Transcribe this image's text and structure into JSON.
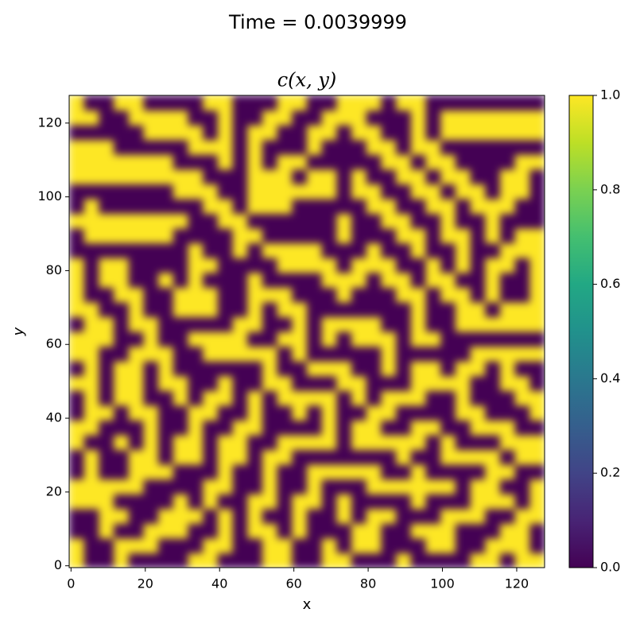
{
  "chart_data": {
    "type": "heatmap",
    "suptitle": "Time = 0.0039999",
    "title": "c(x, y)",
    "xlabel": "x",
    "ylabel": "y",
    "colormap": "viridis",
    "xlim": [
      -0.5,
      127.5
    ],
    "ylim": [
      -0.5,
      127.5
    ],
    "xticks": [
      0,
      20,
      40,
      60,
      80,
      100,
      120
    ],
    "yticks": [
      0,
      20,
      40,
      60,
      80,
      100,
      120
    ],
    "clim": [
      0,
      1
    ],
    "cticks": [
      {
        "value": 0,
        "label": "0.0"
      },
      0.2,
      0.4,
      0.6,
      0.8,
      {
        "value": 1,
        "label": "1.0"
      }
    ],
    "z": [
      [
        1,
        0,
        0,
        1,
        0,
        0,
        0,
        0,
        1,
        1,
        0,
        0,
        0,
        1,
        1,
        0,
        0,
        1,
        1,
        0,
        0,
        0,
        1,
        0,
        0,
        0,
        0,
        1,
        1,
        0,
        1,
        1
      ],
      [
        1,
        0,
        0,
        1,
        1,
        1,
        0,
        0,
        0,
        1,
        1,
        0,
        0,
        1,
        1,
        0,
        0,
        1,
        0,
        1,
        1,
        0,
        0,
        0,
        1,
        1,
        0,
        0,
        1,
        1,
        1,
        0
      ],
      [
        0,
        0,
        1,
        0,
        0,
        1,
        1,
        1,
        0,
        0,
        1,
        0,
        1,
        1,
        0,
        1,
        0,
        0,
        0,
        1,
        1,
        0,
        0,
        1,
        1,
        1,
        0,
        0,
        0,
        1,
        1,
        0
      ],
      [
        0,
        0,
        1,
        1,
        0,
        0,
        1,
        1,
        1,
        0,
        1,
        0,
        1,
        0,
        0,
        1,
        0,
        0,
        1,
        0,
        1,
        1,
        0,
        0,
        0,
        1,
        1,
        1,
        0,
        0,
        1,
        1
      ],
      [
        1,
        1,
        1,
        0,
        0,
        0,
        0,
        1,
        0,
        1,
        0,
        0,
        1,
        1,
        0,
        1,
        1,
        0,
        1,
        0,
        0,
        0,
        0,
        1,
        0,
        0,
        0,
        1,
        1,
        1,
        0,
        1
      ],
      [
        1,
        1,
        1,
        1,
        1,
        0,
        0,
        0,
        0,
        1,
        1,
        0,
        0,
        1,
        0,
        0,
        1,
        0,
        0,
        0,
        1,
        1,
        1,
        1,
        1,
        1,
        0,
        1,
        1,
        0,
        0,
        1
      ],
      [
        0,
        1,
        0,
        0,
        1,
        1,
        1,
        0,
        0,
        0,
        1,
        0,
        0,
        1,
        0,
        0,
        1,
        1,
        1,
        1,
        1,
        0,
        0,
        1,
        0,
        0,
        0,
        0,
        1,
        1,
        0,
        0
      ],
      [
        0,
        1,
        0,
        0,
        1,
        1,
        0,
        1,
        1,
        0,
        1,
        1,
        0,
        1,
        1,
        0,
        0,
        0,
        0,
        0,
        0,
        0,
        1,
        0,
        0,
        1,
        1,
        1,
        1,
        0,
        1,
        1
      ],
      [
        1,
        0,
        0,
        1,
        0,
        1,
        0,
        1,
        1,
        0,
        1,
        1,
        0,
        0,
        1,
        1,
        1,
        1,
        0,
        1,
        1,
        1,
        1,
        1,
        0,
        1,
        0,
        0,
        0,
        1,
        1,
        1
      ],
      [
        1,
        1,
        0,
        0,
        0,
        1,
        0,
        0,
        1,
        0,
        0,
        1,
        1,
        0,
        0,
        0,
        0,
        1,
        0,
        1,
        1,
        0,
        0,
        1,
        1,
        0,
        0,
        1,
        1,
        1,
        0,
        0
      ],
      [
        0,
        1,
        1,
        0,
        1,
        1,
        0,
        0,
        1,
        1,
        0,
        0,
        1,
        0,
        0,
        1,
        0,
        1,
        0,
        0,
        1,
        1,
        0,
        0,
        0,
        0,
        1,
        1,
        0,
        0,
        0,
        1
      ],
      [
        0,
        1,
        0,
        1,
        1,
        0,
        0,
        1,
        0,
        1,
        1,
        0,
        1,
        0,
        1,
        1,
        1,
        1,
        0,
        1,
        0,
        1,
        1,
        1,
        0,
        0,
        1,
        0,
        0,
        0,
        1,
        1
      ],
      [
        1,
        1,
        0,
        1,
        1,
        0,
        1,
        1,
        0,
        0,
        1,
        0,
        0,
        1,
        1,
        0,
        0,
        0,
        1,
        1,
        0,
        0,
        0,
        1,
        1,
        1,
        1,
        0,
        0,
        1,
        1,
        0
      ],
      [
        0,
        1,
        0,
        1,
        1,
        0,
        1,
        0,
        0,
        0,
        0,
        0,
        0,
        1,
        0,
        0,
        1,
        1,
        1,
        0,
        0,
        1,
        0,
        1,
        1,
        0,
        1,
        1,
        0,
        1,
        0,
        0
      ],
      [
        1,
        1,
        0,
        0,
        1,
        1,
        1,
        0,
        0,
        1,
        1,
        1,
        1,
        1,
        0,
        1,
        0,
        0,
        0,
        0,
        0,
        1,
        0,
        0,
        0,
        0,
        0,
        1,
        1,
        1,
        1,
        1
      ],
      [
        1,
        1,
        1,
        0,
        0,
        1,
        0,
        0,
        1,
        1,
        1,
        1,
        0,
        0,
        1,
        1,
        0,
        1,
        0,
        1,
        1,
        1,
        0,
        1,
        1,
        0,
        0,
        0,
        0,
        0,
        0,
        0
      ],
      [
        0,
        1,
        1,
        0,
        1,
        1,
        0,
        0,
        0,
        0,
        0,
        1,
        1,
        0,
        0,
        1,
        0,
        1,
        1,
        1,
        1,
        0,
        0,
        1,
        0,
        0,
        1,
        1,
        1,
        1,
        1,
        1
      ],
      [
        1,
        1,
        0,
        0,
        1,
        0,
        0,
        1,
        1,
        1,
        0,
        0,
        1,
        0,
        1,
        1,
        0,
        0,
        0,
        0,
        0,
        0,
        0,
        1,
        0,
        0,
        1,
        1,
        0,
        1,
        1,
        1
      ],
      [
        1,
        0,
        0,
        1,
        1,
        0,
        0,
        1,
        1,
        1,
        0,
        0,
        1,
        1,
        1,
        0,
        0,
        0,
        1,
        0,
        0,
        0,
        1,
        1,
        0,
        1,
        1,
        0,
        1,
        0,
        0,
        1
      ],
      [
        1,
        0,
        1,
        1,
        0,
        0,
        1,
        0,
        1,
        0,
        0,
        0,
        1,
        0,
        0,
        0,
        0,
        1,
        1,
        1,
        0,
        1,
        1,
        0,
        1,
        1,
        0,
        0,
        1,
        0,
        0,
        1
      ],
      [
        1,
        0,
        1,
        1,
        0,
        0,
        0,
        0,
        1,
        1,
        0,
        0,
        0,
        0,
        1,
        1,
        1,
        1,
        0,
        1,
        1,
        1,
        0,
        0,
        1,
        0,
        1,
        0,
        1,
        1,
        0,
        1
      ],
      [
        0,
        0,
        0,
        0,
        0,
        0,
        0,
        0,
        1,
        0,
        0,
        1,
        0,
        1,
        1,
        1,
        1,
        0,
        0,
        0,
        1,
        0,
        0,
        1,
        0,
        0,
        1,
        0,
        0,
        1,
        1,
        1
      ],
      [
        0,
        1,
        1,
        1,
        1,
        1,
        1,
        0,
        0,
        0,
        0,
        1,
        1,
        0,
        0,
        0,
        0,
        0,
        1,
        0,
        0,
        0,
        1,
        1,
        0,
        1,
        1,
        0,
        1,
        0,
        1,
        1
      ],
      [
        1,
        1,
        1,
        1,
        1,
        1,
        1,
        1,
        0,
        0,
        1,
        1,
        0,
        0,
        0,
        0,
        0,
        0,
        1,
        0,
        0,
        1,
        1,
        0,
        0,
        1,
        0,
        0,
        1,
        0,
        0,
        0
      ],
      [
        0,
        1,
        0,
        0,
        0,
        0,
        0,
        0,
        0,
        1,
        1,
        0,
        1,
        1,
        1,
        0,
        0,
        0,
        0,
        0,
        1,
        1,
        0,
        0,
        1,
        1,
        0,
        1,
        1,
        1,
        0,
        0
      ],
      [
        0,
        0,
        0,
        0,
        0,
        0,
        0,
        1,
        1,
        1,
        0,
        0,
        1,
        1,
        1,
        1,
        1,
        1,
        0,
        1,
        1,
        0,
        0,
        1,
        1,
        0,
        1,
        1,
        0,
        1,
        1,
        0
      ],
      [
        1,
        1,
        1,
        1,
        1,
        1,
        1,
        1,
        1,
        0,
        0,
        0,
        1,
        1,
        1,
        0,
        1,
        1,
        0,
        1,
        0,
        0,
        1,
        1,
        0,
        1,
        1,
        0,
        0,
        1,
        1,
        0
      ],
      [
        1,
        1,
        1,
        1,
        1,
        1,
        1,
        0,
        0,
        0,
        1,
        0,
        1,
        0,
        1,
        1,
        0,
        0,
        0,
        0,
        0,
        1,
        1,
        0,
        1,
        1,
        0,
        0,
        0,
        0,
        1,
        1
      ],
      [
        1,
        1,
        1,
        0,
        0,
        0,
        0,
        0,
        1,
        1,
        1,
        0,
        1,
        0,
        0,
        0,
        1,
        0,
        0,
        0,
        1,
        1,
        0,
        1,
        1,
        0,
        0,
        0,
        0,
        0,
        0,
        0
      ],
      [
        0,
        0,
        0,
        0,
        0,
        1,
        1,
        1,
        1,
        0,
        1,
        0,
        1,
        1,
        0,
        0,
        1,
        1,
        0,
        1,
        1,
        0,
        0,
        1,
        0,
        1,
        1,
        1,
        1,
        1,
        1,
        1
      ],
      [
        1,
        1,
        0,
        0,
        1,
        1,
        1,
        1,
        0,
        0,
        1,
        0,
        0,
        1,
        1,
        0,
        0,
        1,
        1,
        1,
        0,
        0,
        0,
        1,
        0,
        1,
        1,
        1,
        1,
        1,
        1,
        1
      ],
      [
        1,
        0,
        0,
        1,
        1,
        0,
        0,
        0,
        0,
        1,
        1,
        0,
        0,
        0,
        1,
        1,
        0,
        0,
        1,
        1,
        1,
        0,
        1,
        1,
        0,
        0,
        0,
        0,
        0,
        0,
        0,
        0
      ]
    ]
  }
}
